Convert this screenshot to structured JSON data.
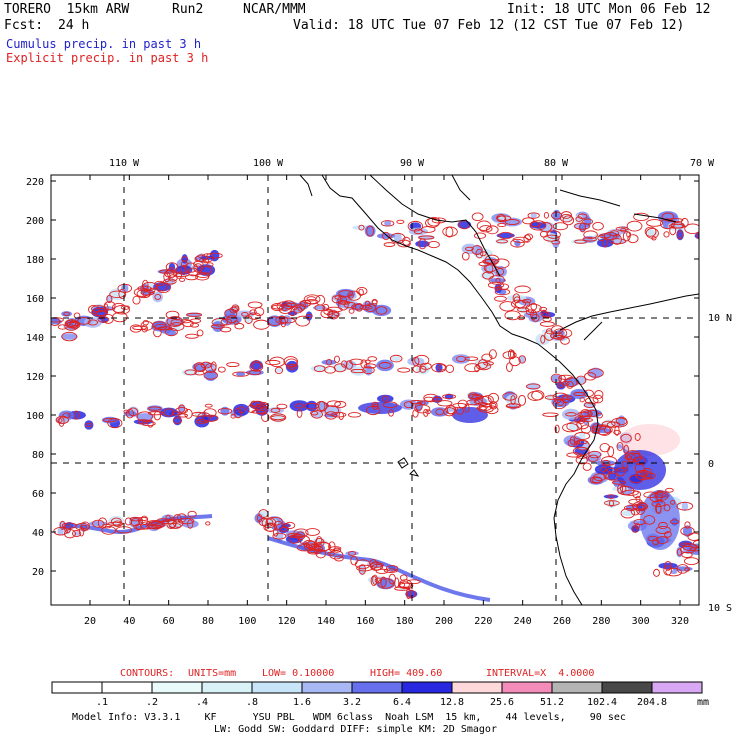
{
  "header": {
    "model": "TORERO  15km ARW",
    "run": "Run2",
    "org": "NCAR/MMM",
    "init": "Init: 18 UTC Mon 06 Feb 12",
    "fcst_label": "Fcst:",
    "fcst_value": "24 h",
    "valid": "Valid: 18 UTC Tue 07 Feb 12 (12 CST Tue 07 Feb 12)",
    "field1": "Cumulus precip. in past 3 h",
    "field2": "Explicit precip. in past 3 h"
  },
  "colors": {
    "cumulus_text": "#2222cc",
    "explicit_text": "#dd2222",
    "contour_line": "#dd2222",
    "grid": "#000000"
  },
  "map": {
    "lon_labels": [
      "110 W",
      "100 W",
      "90 W",
      "80 W",
      "70 W"
    ],
    "lat_labels": [
      "10 N",
      "0",
      "10 S"
    ],
    "x_ticks": [
      "20",
      "40",
      "60",
      "80",
      "100",
      "120",
      "140",
      "160",
      "180",
      "200",
      "220",
      "240",
      "260",
      "280",
      "300",
      "320"
    ],
    "y_ticks": [
      "20",
      "40",
      "60",
      "80",
      "100",
      "120",
      "140",
      "160",
      "180",
      "200",
      "220"
    ]
  },
  "contour_info": {
    "label": "CONTOURS:",
    "units": "UNITS=mm",
    "low": "LOW= 0.10000",
    "high": "HIGH= 409.60",
    "interval": "INTERVAL=X  4.0000"
  },
  "colorbar": {
    "labels": [
      ".1",
      ".2",
      ".4",
      ".8",
      "1.6",
      "3.2",
      "6.4",
      "12.8",
      "25.6",
      "51.2",
      "102.4",
      "204.8"
    ],
    "unit": "mm",
    "colors": [
      "#ffffff",
      "#ffffff",
      "#e8fafa",
      "#d8f2f8",
      "#c8e4f8",
      "#a8b8f4",
      "#6670ec",
      "#2828e0",
      "#ffd8dc",
      "#f48cba",
      "#b4b4b4",
      "#484848",
      "#d8a8f4"
    ]
  },
  "footer": {
    "line1": "Model Info: V3.3.1    KF      YSU PBL   WDM 6class  Noah LSM  15 km,    44 levels,    90 sec",
    "line2": "LW: Godd SW: Goddard DIFF: simple KM: 2D Smagor"
  }
}
